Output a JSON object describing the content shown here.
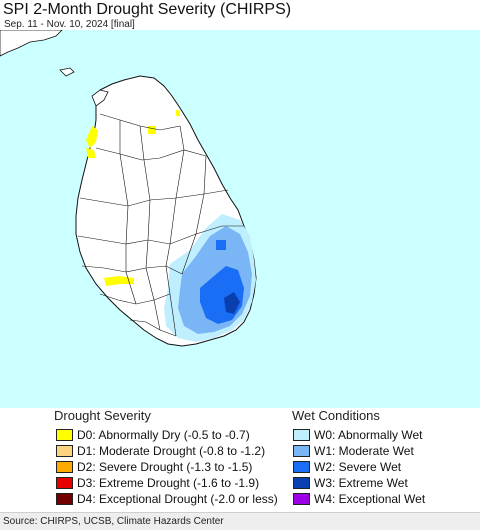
{
  "title": "SPI 2-Month Drought Severity (CHIRPS)",
  "subtitle": "Sep. 11 - Nov. 10, 2024 [final]",
  "drought_legend": {
    "heading": "Drought Severity",
    "items": [
      {
        "label": "D0: Abnormally Dry (-0.5 to -0.7)",
        "color": "#ffff00"
      },
      {
        "label": "D1: Moderate Drought (-0.8 to -1.2)",
        "color": "#fcd37f"
      },
      {
        "label": "D2: Severe Drought (-1.3 to -1.5)",
        "color": "#ffaa00"
      },
      {
        "label": "D3: Extreme Drought (-1.6 to -1.9)",
        "color": "#e60000"
      },
      {
        "label": "D4: Exceptional Drought (-2.0 or less)",
        "color": "#730000"
      }
    ]
  },
  "wet_legend": {
    "heading": "Wet Conditions",
    "items": [
      {
        "label": "W0: Abnormally Wet",
        "color": "#bfefff"
      },
      {
        "label": "W1: Moderate Wet",
        "color": "#7ab6f5"
      },
      {
        "label": "W2: Severe Wet",
        "color": "#1a6ef5"
      },
      {
        "label": "W3: Extreme Wet",
        "color": "#0a3fb0"
      },
      {
        "label": "W4: Exceptional Wet",
        "color": "#9b00e6"
      }
    ]
  },
  "map": {
    "sea_color": "#ccffff",
    "land_color": "#ffffff",
    "border_color": "#111111"
  },
  "source": "Source: CHIRPS, UCSB, Climate Hazards Center"
}
